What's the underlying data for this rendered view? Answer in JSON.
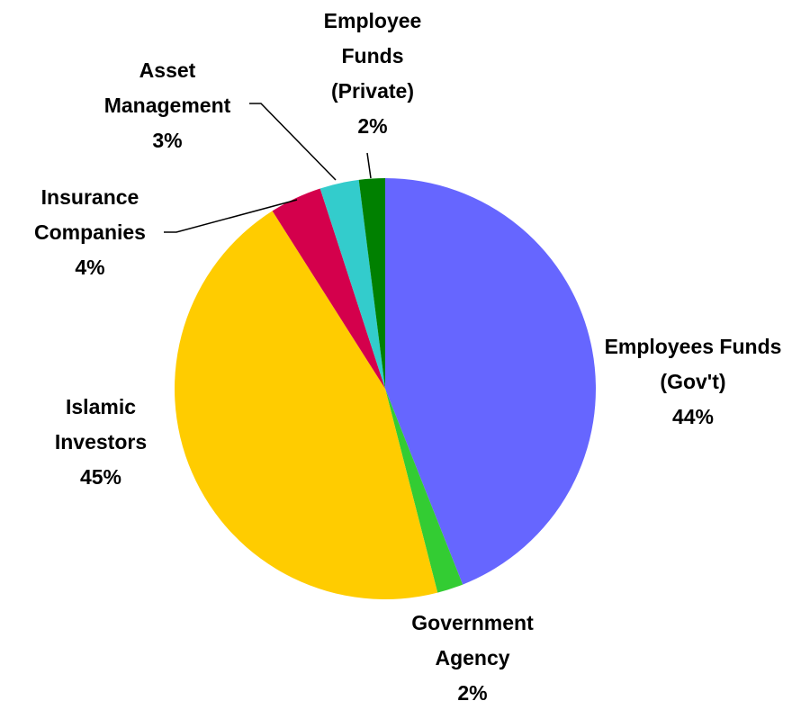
{
  "chart_data": {
    "type": "pie",
    "categories": [
      "Employees Funds (Gov't)",
      "Government Agency",
      "Islamic Investors",
      "Insurance Companies",
      "Asset Management",
      "Employee Funds (Private)"
    ],
    "values": [
      44,
      2,
      45,
      4,
      3,
      2
    ],
    "value_labels": [
      "44%",
      "2%",
      "45%",
      "4%",
      "3%",
      "2%"
    ],
    "colors": [
      "#6666ff",
      "#33cc33",
      "#ffcc00",
      "#d4004c",
      "#33cccc",
      "#008000"
    ]
  }
}
